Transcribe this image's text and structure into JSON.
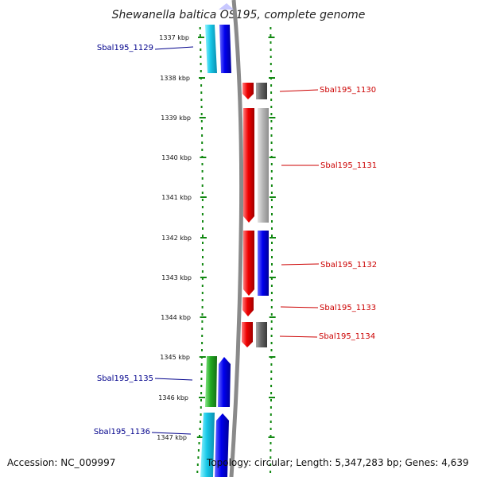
{
  "title": "Shewanella baltica OS195, complete genome",
  "accession": "Accession: NC_009997",
  "topology": "Topology: circular; Length: 5,347,283 bp; Genes: 4,639",
  "colors": {
    "cyan": "#18c8e8",
    "blue": "#0000ee",
    "red": "#ee0000",
    "green": "#22aa22",
    "dark_gray": "#666666",
    "light_gray": "#b8b8b8",
    "backbone": "#8a8a8a",
    "ticks": "#118811",
    "left_label": "#00008b",
    "right_label": "#cc0000"
  },
  "kbp_ticks": [
    "1337 kbp",
    "1338 kbp",
    "1339 kbp",
    "1340 kbp",
    "1341 kbp",
    "1342 kbp",
    "1343 kbp",
    "1344 kbp",
    "1345 kbp",
    "1346 kbp",
    "1347 kbp"
  ],
  "gene_labels": {
    "left": [
      "Sbal195_1129",
      "Sbal195_1135",
      "Sbal195_1136"
    ],
    "right": [
      "Sbal195_1130",
      "Sbal195_1131",
      "Sbal195_1132",
      "Sbal195_1133",
      "Sbal195_1134"
    ]
  }
}
